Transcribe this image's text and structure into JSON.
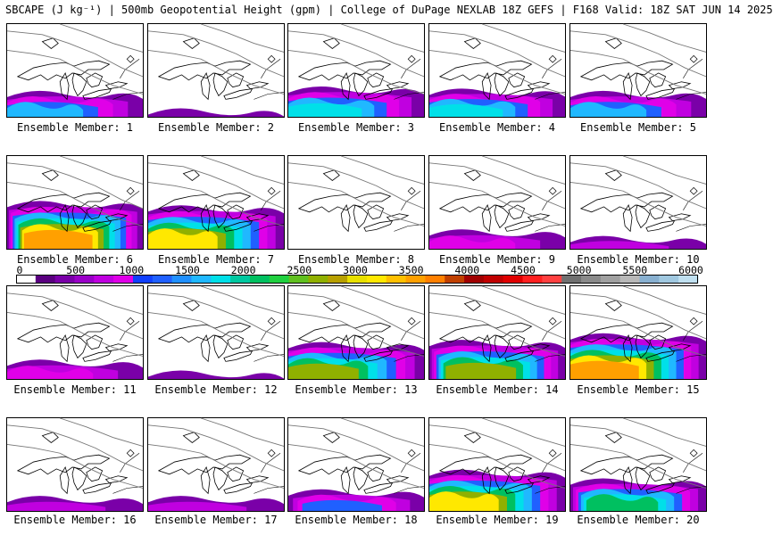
{
  "title": "SBCAPE (J kg⁻¹) | 500mb Geopotential Height (gpm) | College of DuPage NEXLAB 18Z GEFS | F168 Valid: 18Z SAT JUN 14 2025",
  "colorbar": {
    "tick_labels": [
      "0",
      "500",
      "1000",
      "1500",
      "2000",
      "2500",
      "3000",
      "3500",
      "4000",
      "4500",
      "5000",
      "5500",
      "6000"
    ],
    "colors": [
      "#ffffff",
      "#5a0080",
      "#7a00a8",
      "#9a00c8",
      "#c000e0",
      "#e000e8",
      "#1040ff",
      "#2060ff",
      "#2090ff",
      "#20b8ff",
      "#00e0e8",
      "#00c8a0",
      "#00c060",
      "#20d040",
      "#60c020",
      "#90b000",
      "#b8a000",
      "#e8e000",
      "#ffe800",
      "#ffc000",
      "#ffa000",
      "#ff8000",
      "#c04000",
      "#a00000",
      "#c00000",
      "#e00000",
      "#ff2020",
      "#ff4040",
      "#707070",
      "#8a8a8a",
      "#a0a0a0",
      "#b8b8b8",
      "#88b0d0",
      "#a0c8e0",
      "#c0e0f0"
    ]
  },
  "members": [
    {
      "label": "Ensemble Member: 1",
      "intensity": 0.45
    },
    {
      "label": "Ensemble Member: 2",
      "intensity": 0.05
    },
    {
      "label": "Ensemble Member: 3",
      "intensity": 0.55
    },
    {
      "label": "Ensemble Member: 4",
      "intensity": 0.5
    },
    {
      "label": "Ensemble Member: 5",
      "intensity": 0.45
    },
    {
      "label": "Ensemble Member: 6",
      "intensity": 0.95
    },
    {
      "label": "Ensemble Member: 7",
      "intensity": 0.85
    },
    {
      "label": "Ensemble Member: 8",
      "intensity": 0.0
    },
    {
      "label": "Ensemble Member: 9",
      "intensity": 0.3
    },
    {
      "label": "Ensemble Member: 10",
      "intensity": 0.15
    },
    {
      "label": "Ensemble Member: 11",
      "intensity": 0.3
    },
    {
      "label": "Ensemble Member: 12",
      "intensity": 0.05
    },
    {
      "label": "Ensemble Member: 13",
      "intensity": 0.7
    },
    {
      "label": "Ensemble Member: 14",
      "intensity": 0.75
    },
    {
      "label": "Ensemble Member: 15",
      "intensity": 0.9
    },
    {
      "label": "Ensemble Member: 16",
      "intensity": 0.2
    },
    {
      "label": "Ensemble Member: 17",
      "intensity": 0.2
    },
    {
      "label": "Ensemble Member: 18",
      "intensity": 0.35
    },
    {
      "label": "Ensemble Member: 19",
      "intensity": 0.8
    },
    {
      "label": "Ensemble Member: 20",
      "intensity": 0.6
    }
  ]
}
